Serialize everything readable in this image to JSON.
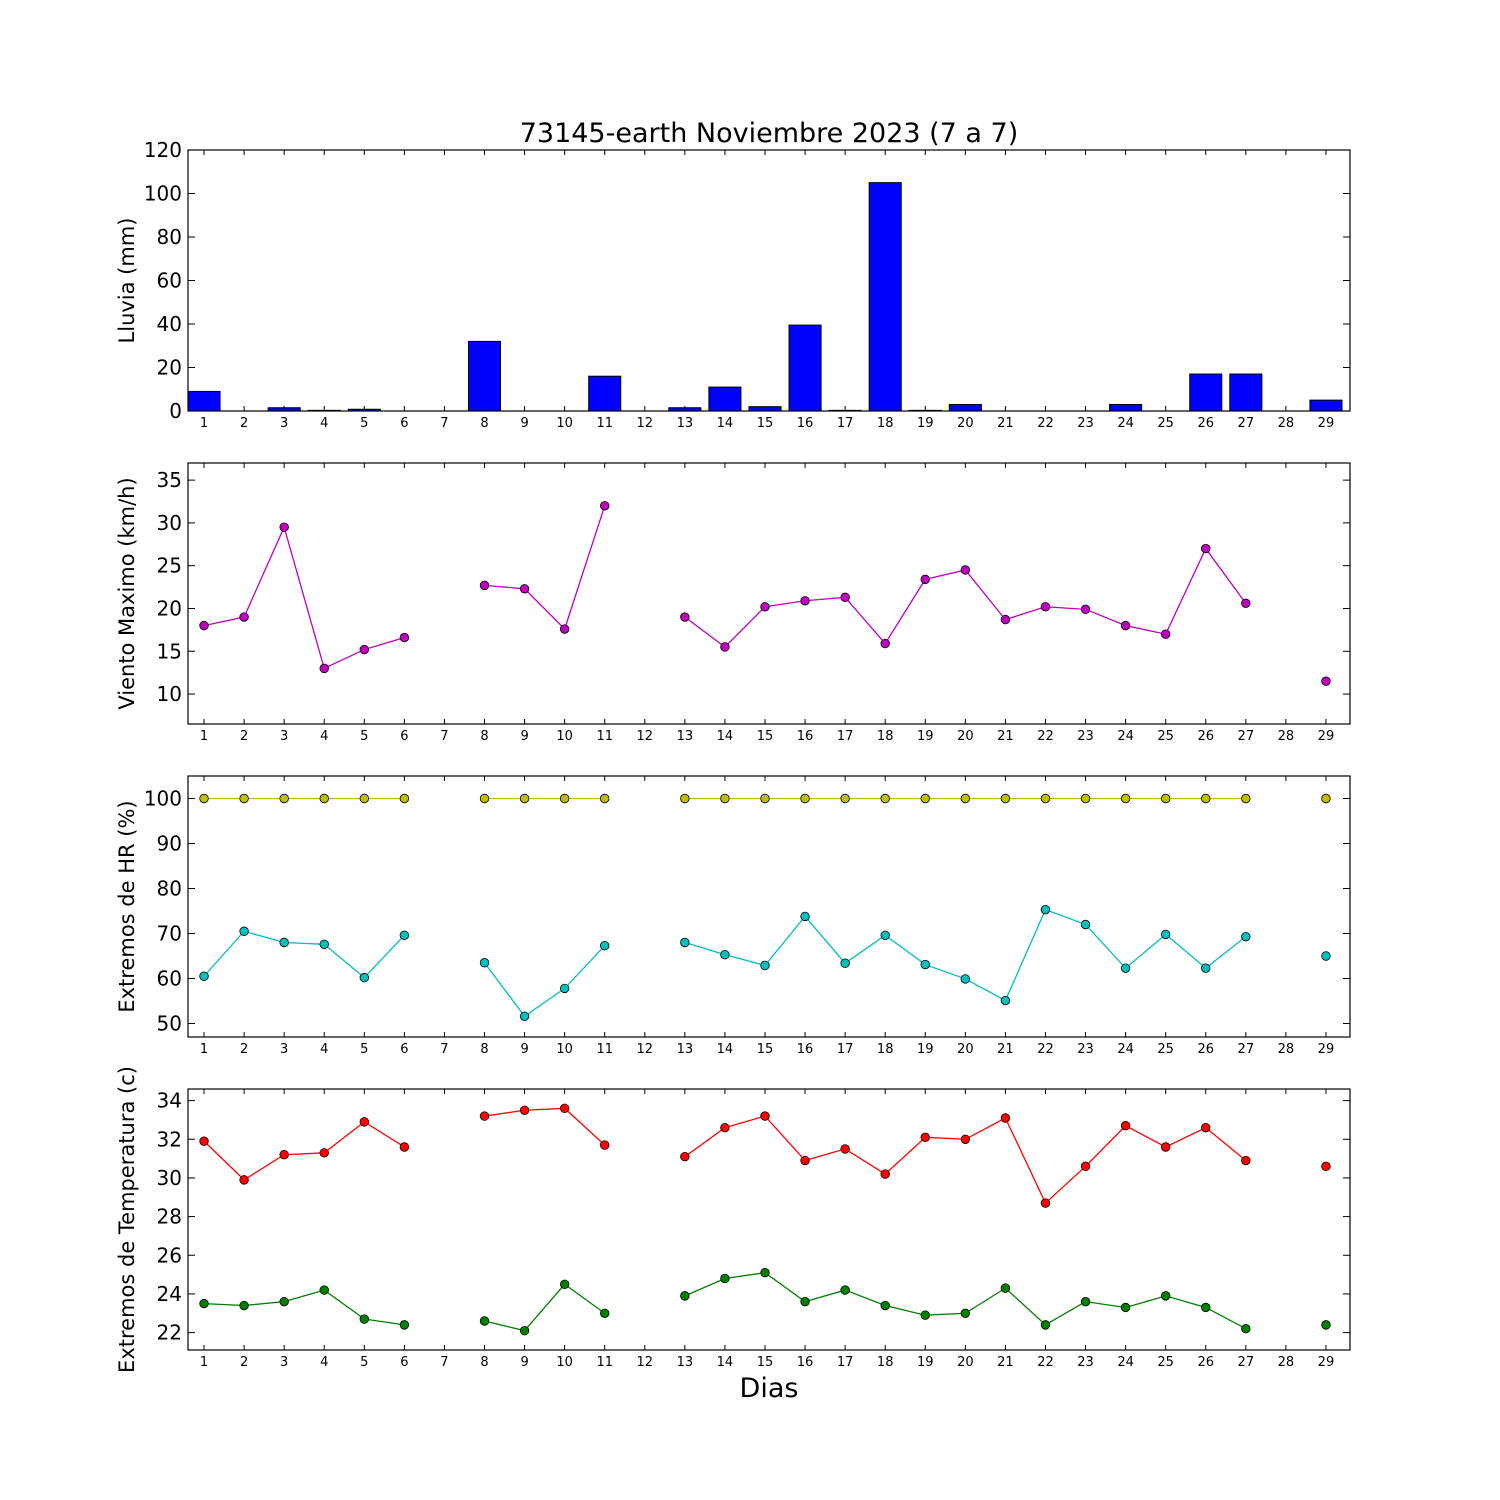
{
  "title": "73145-earth Noviembre 2023  (7 a 7)",
  "xlabel": "Dias",
  "colors": {
    "rain": "#0000ff",
    "wind": "#bf00bf",
    "hr_max": "#bfbf00",
    "hr_min": "#00bfbf",
    "temp_max": "#ff0000",
    "temp_min": "#008000"
  },
  "chart_data": [
    {
      "type": "bar",
      "ylabel": "Lluvia (mm)",
      "ylim": [
        0,
        120
      ],
      "yticks": [
        0,
        20,
        40,
        60,
        80,
        100,
        120
      ],
      "categories": [
        1,
        2,
        3,
        4,
        5,
        6,
        7,
        8,
        9,
        10,
        11,
        12,
        13,
        14,
        15,
        16,
        17,
        18,
        19,
        20,
        21,
        22,
        23,
        24,
        25,
        26,
        27,
        28,
        29
      ],
      "values": [
        9,
        0,
        1.5,
        0.3,
        0.8,
        0,
        0,
        32,
        0,
        0,
        16,
        0,
        1.5,
        11,
        2,
        39.5,
        0.3,
        105,
        0.3,
        3,
        0,
        0,
        0,
        3,
        0,
        17,
        17,
        0,
        5
      ]
    },
    {
      "type": "line",
      "ylabel": "Viento Maximo (km/h)",
      "ylim": [
        6.5,
        37
      ],
      "yticks": [
        10,
        15,
        20,
        25,
        30,
        35
      ],
      "x": [
        1,
        2,
        3,
        4,
        5,
        6,
        7,
        8,
        9,
        10,
        11,
        12,
        13,
        14,
        15,
        16,
        17,
        18,
        19,
        20,
        21,
        22,
        23,
        24,
        25,
        26,
        27,
        28,
        29
      ],
      "series": [
        {
          "values": [
            18.0,
            19.0,
            29.5,
            13.0,
            15.2,
            16.6,
            null,
            22.7,
            22.3,
            17.6,
            32.0,
            null,
            19.0,
            15.5,
            20.2,
            20.9,
            21.3,
            15.9,
            23.4,
            24.5,
            18.7,
            20.2,
            19.9,
            18.0,
            17.0,
            27.0,
            20.6,
            null,
            11.5
          ]
        }
      ]
    },
    {
      "type": "line",
      "ylabel": "Extremos de HR (%)",
      "ylim": [
        47,
        105
      ],
      "yticks": [
        50,
        60,
        70,
        80,
        90,
        100
      ],
      "x": [
        1,
        2,
        3,
        4,
        5,
        6,
        7,
        8,
        9,
        10,
        11,
        12,
        13,
        14,
        15,
        16,
        17,
        18,
        19,
        20,
        21,
        22,
        23,
        24,
        25,
        26,
        27,
        28,
        29
      ],
      "series": [
        {
          "values": [
            100,
            100,
            100,
            100,
            100,
            100,
            null,
            100,
            100,
            100,
            100,
            null,
            100,
            100,
            100,
            100,
            100,
            100,
            100,
            100,
            100,
            100,
            100,
            100,
            100,
            100,
            100,
            null,
            100
          ]
        },
        {
          "values": [
            60.5,
            70.5,
            68.0,
            67.6,
            60.2,
            69.6,
            null,
            63.5,
            51.6,
            57.8,
            67.3,
            null,
            68.0,
            65.3,
            62.9,
            73.8,
            63.4,
            69.6,
            63.1,
            59.9,
            55.1,
            75.3,
            72.0,
            62.3,
            69.8,
            62.3,
            69.3,
            null,
            65.0
          ]
        }
      ]
    },
    {
      "type": "line",
      "ylabel": "Extremos de Temperatura (c)",
      "ylim": [
        21.1,
        34.6
      ],
      "yticks": [
        22,
        24,
        26,
        28,
        30,
        32,
        34
      ],
      "x": [
        1,
        2,
        3,
        4,
        5,
        6,
        7,
        8,
        9,
        10,
        11,
        12,
        13,
        14,
        15,
        16,
        17,
        18,
        19,
        20,
        21,
        22,
        23,
        24,
        25,
        26,
        27,
        28,
        29
      ],
      "series": [
        {
          "values": [
            31.9,
            29.9,
            31.2,
            31.3,
            32.9,
            31.6,
            null,
            33.2,
            33.5,
            33.6,
            31.7,
            null,
            31.1,
            32.6,
            33.2,
            30.9,
            31.5,
            30.2,
            32.1,
            32.0,
            33.1,
            28.7,
            30.6,
            32.7,
            31.6,
            32.6,
            30.9,
            null,
            30.6
          ]
        },
        {
          "values": [
            23.5,
            23.4,
            23.6,
            24.2,
            22.7,
            22.4,
            null,
            22.6,
            22.1,
            24.5,
            23.0,
            null,
            23.9,
            24.8,
            25.1,
            23.6,
            24.2,
            23.4,
            22.9,
            23.0,
            24.3,
            22.4,
            23.6,
            23.3,
            23.9,
            23.3,
            22.2,
            null,
            22.4
          ]
        }
      ]
    }
  ]
}
